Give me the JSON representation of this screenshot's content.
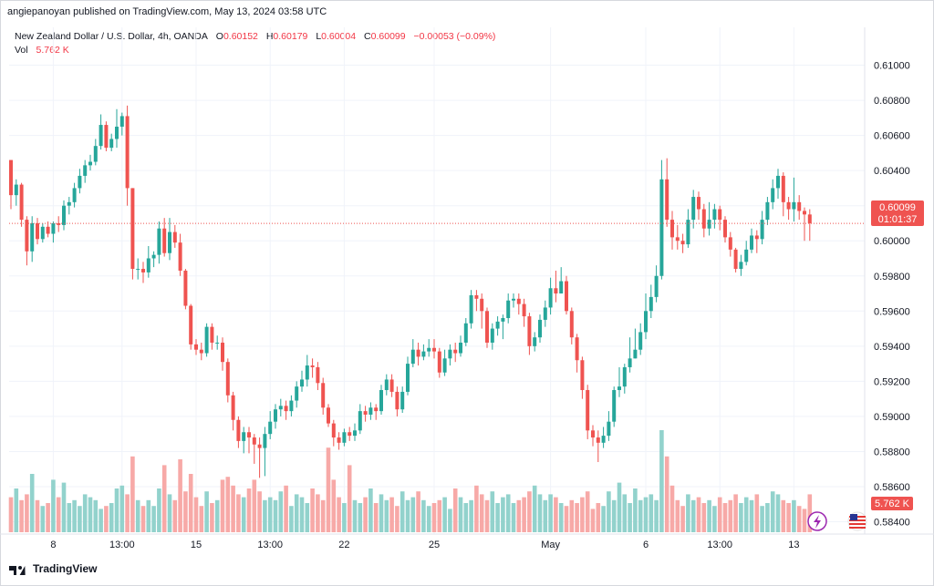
{
  "header": {
    "published": "angiepanoyan published on TradingView.com, May 13, 2024 03:58 UTC"
  },
  "legend": {
    "symbol": "New Zealand Dollar / U.S. Dollar, 4h, OANDA",
    "o_label": "O",
    "o_value": "0.60152",
    "h_label": "H",
    "h_value": "0.60179",
    "l_label": "L",
    "l_value": "0.60004",
    "c_label": "C",
    "c_value": "0.60099",
    "change": "−0.00053 (−0.09%)",
    "vol_label": "Vol",
    "vol_value": "5.762 K"
  },
  "price_badge": {
    "price": "0.60099",
    "countdown": "01:01:37"
  },
  "volume_badge": "5.762 K",
  "footer": {
    "brand": "TradingView"
  },
  "colors": {
    "up": "#26a69a",
    "down": "#ef5350",
    "up_vol": "#92d2cc",
    "down_vol": "#f7a9a7",
    "grid": "#f0f3fa",
    "price_line": "#ef5350"
  },
  "chart_data": {
    "type": "candlestick",
    "title": "New Zealand Dollar / U.S. Dollar, 4h, OANDA",
    "ylim": [
      0.5833,
      0.6113
    ],
    "y_ticks": [
      "0.61000",
      "0.60800",
      "0.60600",
      "0.60400",
      "0.60200",
      "0.60000",
      "0.59800",
      "0.59600",
      "0.59400",
      "0.59200",
      "0.59000",
      "0.58800",
      "0.58600",
      "0.58400"
    ],
    "x_ticks": [
      {
        "label": "8",
        "index": 8
      },
      {
        "label": "13:00",
        "index": 21
      },
      {
        "label": "15",
        "index": 35
      },
      {
        "label": "13:00",
        "index": 49
      },
      {
        "label": "22",
        "index": 63
      },
      {
        "label": "25",
        "index": 80
      },
      {
        "label": "May",
        "index": 102
      },
      {
        "label": "6",
        "index": 120
      },
      {
        "label": "13:00",
        "index": 134
      },
      {
        "label": "13",
        "index": 148
      }
    ],
    "current_price": 0.60099,
    "candles": [
      [
        0.6046,
        0.6026,
        0.6046,
        0.6018,
        1.2
      ],
      [
        0.6026,
        0.6032,
        0.6035,
        0.602,
        1.5
      ],
      [
        0.6032,
        0.6012,
        0.6033,
        0.6008,
        1.1
      ],
      [
        0.6012,
        0.5994,
        0.6014,
        0.5986,
        1.3
      ],
      [
        0.5994,
        0.601,
        0.6014,
        0.5988,
        2.0
      ],
      [
        0.601,
        0.6001,
        0.6013,
        0.5998,
        1.1
      ],
      [
        0.6001,
        0.6008,
        0.601,
        0.5999,
        0.9
      ],
      [
        0.6008,
        0.6004,
        0.6011,
        0.6002,
        1.0
      ],
      [
        0.6004,
        0.601,
        0.6011,
        0.5999,
        1.8
      ],
      [
        0.601,
        0.6009,
        0.6014,
        0.6005,
        1.2
      ],
      [
        0.6009,
        0.602,
        0.6023,
        0.6006,
        1.7
      ],
      [
        0.602,
        0.6022,
        0.6025,
        0.6015,
        1.0
      ],
      [
        0.6022,
        0.603,
        0.6033,
        0.6019,
        1.1
      ],
      [
        0.603,
        0.6037,
        0.6041,
        0.6027,
        0.9
      ],
      [
        0.6037,
        0.6043,
        0.6046,
        0.6033,
        1.3
      ],
      [
        0.6043,
        0.6045,
        0.6049,
        0.604,
        1.2
      ],
      [
        0.6045,
        0.6054,
        0.6058,
        0.6043,
        1.1
      ],
      [
        0.6054,
        0.6066,
        0.6072,
        0.6052,
        0.8
      ],
      [
        0.6066,
        0.6053,
        0.6068,
        0.6051,
        0.9
      ],
      [
        0.6053,
        0.6058,
        0.6061,
        0.6051,
        1.0
      ],
      [
        0.6058,
        0.6065,
        0.6075,
        0.6053,
        1.5
      ],
      [
        0.6065,
        0.6071,
        0.6073,
        0.606,
        1.6
      ],
      [
        0.6071,
        0.603,
        0.6077,
        0.602,
        1.3
      ],
      [
        0.603,
        0.5984,
        0.603,
        0.5978,
        2.6
      ],
      [
        0.5984,
        0.5984,
        0.599,
        0.5978,
        1.1
      ],
      [
        0.5984,
        0.5982,
        0.5988,
        0.5976,
        0.9
      ],
      [
        0.5982,
        0.599,
        0.5997,
        0.5979,
        1.1
      ],
      [
        0.599,
        0.5992,
        0.5994,
        0.5985,
        0.9
      ],
      [
        0.5992,
        0.6007,
        0.6011,
        0.5987,
        1.5
      ],
      [
        0.6007,
        0.5993,
        0.6013,
        0.5991,
        2.3
      ],
      [
        0.5993,
        0.6005,
        0.6013,
        0.5989,
        1.3
      ],
      [
        0.6005,
        0.5999,
        0.6009,
        0.5996,
        1.1
      ],
      [
        0.5999,
        0.5983,
        0.6004,
        0.598,
        2.5
      ],
      [
        0.5983,
        0.5963,
        0.5984,
        0.5961,
        1.4
      ],
      [
        0.5963,
        0.5941,
        0.5964,
        0.5938,
        2.0
      ],
      [
        0.5941,
        0.5938,
        0.5944,
        0.5935,
        1.2
      ],
      [
        0.5938,
        0.5936,
        0.5942,
        0.5932,
        0.9
      ],
      [
        0.5936,
        0.5951,
        0.5953,
        0.5934,
        1.4
      ],
      [
        0.5951,
        0.5942,
        0.5953,
        0.5938,
        1.0
      ],
      [
        0.5942,
        0.5942,
        0.5946,
        0.5938,
        1.1
      ],
      [
        0.5942,
        0.5931,
        0.5945,
        0.5926,
        1.8
      ],
      [
        0.5931,
        0.5912,
        0.5933,
        0.5908,
        1.9
      ],
      [
        0.5912,
        0.5898,
        0.5914,
        0.5892,
        1.6
      ],
      [
        0.5898,
        0.5886,
        0.59,
        0.5882,
        1.3
      ],
      [
        0.5886,
        0.5891,
        0.5894,
        0.5879,
        1.2
      ],
      [
        0.5891,
        0.5888,
        0.5894,
        0.5879,
        1.5
      ],
      [
        0.5888,
        0.5884,
        0.589,
        0.5873,
        1.8
      ],
      [
        0.5884,
        0.5882,
        0.5888,
        0.5865,
        1.4
      ],
      [
        0.5882,
        0.589,
        0.5894,
        0.5866,
        1.1
      ],
      [
        0.589,
        0.5897,
        0.5903,
        0.5887,
        1.2
      ],
      [
        0.5897,
        0.5904,
        0.5907,
        0.5893,
        1.1
      ],
      [
        0.5904,
        0.5906,
        0.591,
        0.59,
        1.4
      ],
      [
        0.5906,
        0.5903,
        0.5909,
        0.5898,
        1.6
      ],
      [
        0.5903,
        0.5909,
        0.5912,
        0.59,
        0.9
      ],
      [
        0.5909,
        0.5917,
        0.592,
        0.5905,
        1.3
      ],
      [
        0.5917,
        0.5921,
        0.5926,
        0.5914,
        1.2
      ],
      [
        0.5921,
        0.5929,
        0.5935,
        0.5917,
        1.0
      ],
      [
        0.5929,
        0.5928,
        0.5933,
        0.5922,
        1.5
      ],
      [
        0.5928,
        0.5919,
        0.5931,
        0.5915,
        1.3
      ],
      [
        0.5919,
        0.5905,
        0.5922,
        0.5901,
        1.1
      ],
      [
        0.5905,
        0.5896,
        0.5907,
        0.5894,
        2.9
      ],
      [
        0.5896,
        0.5888,
        0.5898,
        0.5883,
        1.8
      ],
      [
        0.5888,
        0.5885,
        0.5891,
        0.5881,
        1.2
      ],
      [
        0.5885,
        0.5891,
        0.5893,
        0.5883,
        1.0
      ],
      [
        0.5891,
        0.5889,
        0.5894,
        0.5886,
        2.3
      ],
      [
        0.5889,
        0.5892,
        0.5896,
        0.5886,
        1.1
      ],
      [
        0.5892,
        0.5903,
        0.5907,
        0.589,
        1.0
      ],
      [
        0.5903,
        0.5901,
        0.5906,
        0.5897,
        1.2
      ],
      [
        0.5901,
        0.5905,
        0.5908,
        0.5898,
        1.5
      ],
      [
        0.5905,
        0.5903,
        0.5907,
        0.5898,
        1.0
      ],
      [
        0.5903,
        0.5915,
        0.5918,
        0.5901,
        1.3
      ],
      [
        0.5915,
        0.5921,
        0.5924,
        0.5912,
        1.1
      ],
      [
        0.5921,
        0.5914,
        0.5924,
        0.5911,
        1.2
      ],
      [
        0.5914,
        0.5904,
        0.5917,
        0.59,
        0.9
      ],
      [
        0.5904,
        0.5914,
        0.5917,
        0.5902,
        1.4
      ],
      [
        0.5914,
        0.593,
        0.5934,
        0.5912,
        1.1
      ],
      [
        0.593,
        0.5938,
        0.5944,
        0.5928,
        1.2
      ],
      [
        0.5938,
        0.5934,
        0.5942,
        0.5929,
        1.4
      ],
      [
        0.5934,
        0.5937,
        0.5941,
        0.5932,
        1.1
      ],
      [
        0.5937,
        0.5939,
        0.5944,
        0.5934,
        0.9
      ],
      [
        0.5939,
        0.5937,
        0.5944,
        0.5933,
        1.0
      ],
      [
        0.5937,
        0.5925,
        0.5939,
        0.5922,
        1.1
      ],
      [
        0.5925,
        0.5933,
        0.5938,
        0.5923,
        1.2
      ],
      [
        0.5933,
        0.5938,
        0.5941,
        0.5929,
        0.8
      ],
      [
        0.5938,
        0.5936,
        0.5942,
        0.5931,
        1.5
      ],
      [
        0.5936,
        0.5942,
        0.5946,
        0.5934,
        1.2
      ],
      [
        0.5942,
        0.5953,
        0.5956,
        0.594,
        1.0
      ],
      [
        0.5953,
        0.5969,
        0.5972,
        0.595,
        1.1
      ],
      [
        0.5969,
        0.5967,
        0.5972,
        0.596,
        1.6
      ],
      [
        0.5967,
        0.596,
        0.597,
        0.595,
        1.3
      ],
      [
        0.596,
        0.5942,
        0.5962,
        0.5939,
        1.1
      ],
      [
        0.5942,
        0.595,
        0.5953,
        0.5938,
        1.4
      ],
      [
        0.595,
        0.5954,
        0.5957,
        0.5946,
        1.0
      ],
      [
        0.5954,
        0.5956,
        0.5958,
        0.5944,
        1.2
      ],
      [
        0.5956,
        0.5966,
        0.597,
        0.5953,
        1.3
      ],
      [
        0.5966,
        0.5967,
        0.597,
        0.5962,
        1.0
      ],
      [
        0.5967,
        0.5964,
        0.597,
        0.5958,
        1.1
      ],
      [
        0.5964,
        0.5957,
        0.5967,
        0.5951,
        1.2
      ],
      [
        0.5957,
        0.594,
        0.5959,
        0.5935,
        1.4
      ],
      [
        0.594,
        0.5945,
        0.5948,
        0.5937,
        1.6
      ],
      [
        0.5945,
        0.5955,
        0.5958,
        0.5942,
        1.3
      ],
      [
        0.5955,
        0.5962,
        0.5966,
        0.5951,
        1.1
      ],
      [
        0.5962,
        0.5973,
        0.5979,
        0.5958,
        1.3
      ],
      [
        0.5973,
        0.597,
        0.5983,
        0.5965,
        1.2
      ],
      [
        0.597,
        0.5977,
        0.5985,
        0.597,
        1.0
      ],
      [
        0.5977,
        0.596,
        0.598,
        0.5958,
        0.9
      ],
      [
        0.596,
        0.5945,
        0.5962,
        0.5941,
        1.1
      ],
      [
        0.5945,
        0.5932,
        0.5947,
        0.5925,
        1.0
      ],
      [
        0.5932,
        0.5915,
        0.5934,
        0.591,
        1.2
      ],
      [
        0.5915,
        0.5892,
        0.5918,
        0.5887,
        1.4
      ],
      [
        0.5892,
        0.5888,
        0.5895,
        0.5883,
        0.8
      ],
      [
        0.5888,
        0.5885,
        0.5892,
        0.5874,
        1.0
      ],
      [
        0.5885,
        0.5889,
        0.5894,
        0.5882,
        0.9
      ],
      [
        0.5889,
        0.5897,
        0.5903,
        0.5886,
        1.4
      ],
      [
        0.5897,
        0.5915,
        0.5917,
        0.5894,
        1.1
      ],
      [
        0.5915,
        0.5917,
        0.5928,
        0.5911,
        1.7
      ],
      [
        0.5917,
        0.5928,
        0.593,
        0.5913,
        1.3
      ],
      [
        0.5928,
        0.5933,
        0.5945,
        0.5925,
        1.0
      ],
      [
        0.5933,
        0.5938,
        0.595,
        0.5933,
        1.5
      ],
      [
        0.5938,
        0.5948,
        0.5953,
        0.5935,
        1.1
      ],
      [
        0.5948,
        0.596,
        0.597,
        0.5944,
        1.2
      ],
      [
        0.596,
        0.5968,
        0.5975,
        0.5956,
        1.3
      ],
      [
        0.5968,
        0.598,
        0.5986,
        0.5965,
        1.1
      ],
      [
        0.598,
        0.6035,
        0.6046,
        0.5978,
        3.5
      ],
      [
        0.6035,
        0.6012,
        0.6047,
        0.6008,
        2.6
      ],
      [
        0.6012,
        0.6002,
        0.6017,
        0.5995,
        1.6
      ],
      [
        0.6002,
        0.6,
        0.6009,
        0.5995,
        1.1
      ],
      [
        0.6,
        0.5998,
        0.6004,
        0.5993,
        0.9
      ],
      [
        0.5998,
        0.6012,
        0.6018,
        0.5996,
        1.3
      ],
      [
        0.6012,
        0.6025,
        0.6029,
        0.6007,
        1.1
      ],
      [
        0.6025,
        0.6018,
        0.6028,
        0.6012,
        1.2
      ],
      [
        0.6018,
        0.6007,
        0.6021,
        0.6002,
        1.0
      ],
      [
        0.6007,
        0.6012,
        0.6022,
        0.6003,
        1.1
      ],
      [
        0.6012,
        0.6018,
        0.6021,
        0.6007,
        0.9
      ],
      [
        0.6018,
        0.6012,
        0.602,
        0.6006,
        1.2
      ],
      [
        0.6012,
        0.6002,
        0.6014,
        0.5999,
        1.0
      ],
      [
        0.6002,
        0.5995,
        0.6005,
        0.5991,
        1.1
      ],
      [
        0.5995,
        0.5984,
        0.5996,
        0.5982,
        1.3
      ],
      [
        0.5984,
        0.5988,
        0.5992,
        0.598,
        1.0
      ],
      [
        0.5988,
        0.5995,
        0.6,
        0.5986,
        1.2
      ],
      [
        0.5995,
        0.6003,
        0.6007,
        0.5993,
        1.1
      ],
      [
        0.6003,
        0.6001,
        0.6006,
        0.5993,
        1.3
      ],
      [
        0.6001,
        0.6012,
        0.6017,
        0.5998,
        0.9
      ],
      [
        0.6012,
        0.6022,
        0.6025,
        0.6009,
        1.0
      ],
      [
        0.6022,
        0.603,
        0.6035,
        0.6018,
        1.4
      ],
      [
        0.603,
        0.6037,
        0.6041,
        0.6024,
        1.3
      ],
      [
        0.6037,
        0.6022,
        0.6039,
        0.6014,
        1.1
      ],
      [
        0.6022,
        0.6018,
        0.6025,
        0.6012,
        1.0
      ],
      [
        0.6018,
        0.6022,
        0.6036,
        0.6011,
        1.1
      ],
      [
        0.6022,
        0.6017,
        0.6026,
        0.6012,
        0.9
      ],
      [
        0.6017,
        0.6015,
        0.6019,
        0.6,
        0.8
      ],
      [
        0.6015,
        0.601,
        0.6018,
        0.6,
        1.3
      ]
    ]
  }
}
